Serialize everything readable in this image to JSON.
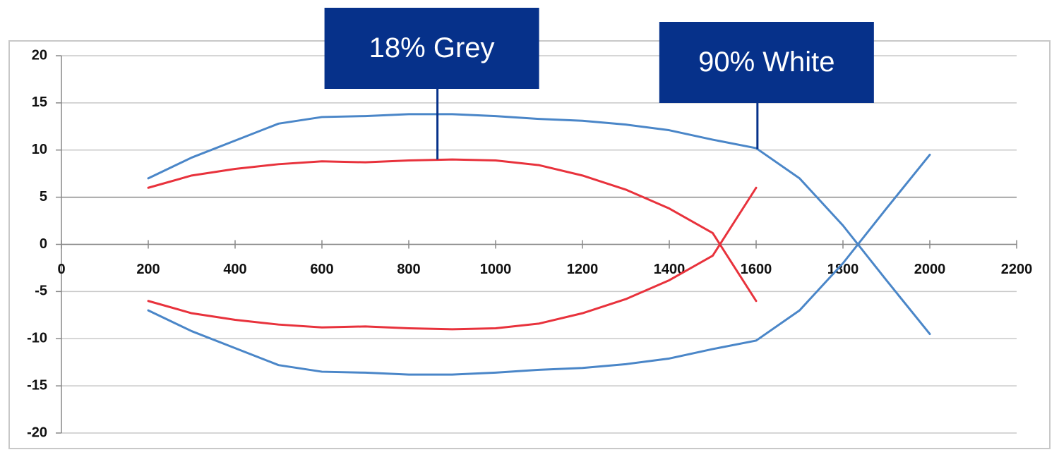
{
  "chart_data": {
    "type": "line",
    "x": [
      200,
      300,
      400,
      500,
      600,
      700,
      800,
      900,
      1000,
      1100,
      1200,
      1300,
      1400,
      1500,
      1600,
      1700,
      1800,
      1900,
      2000
    ],
    "series": [
      {
        "color": "#4a86c8",
        "values": [
          7,
          9.2,
          11,
          12.8,
          13.5,
          13.6,
          13.8,
          13.8,
          13.6,
          13.3,
          13.1,
          12.7,
          12.1,
          11.1,
          10.2,
          7,
          2,
          -3.8,
          -9.5
        ]
      },
      {
        "color": "#4a86c8",
        "values": [
          -7,
          -9.2,
          -11,
          -12.8,
          -13.5,
          -13.6,
          -13.8,
          -13.8,
          -13.6,
          -13.3,
          -13.1,
          -12.7,
          -12.1,
          -11.1,
          -10.2,
          -7,
          -2,
          3.8,
          9.5
        ]
      },
      {
        "color": "#e8323c",
        "values": [
          6,
          7.3,
          8,
          8.5,
          8.8,
          8.7,
          8.9,
          9,
          8.9,
          8.4,
          7.3,
          5.8,
          3.8,
          1.2,
          -6,
          null,
          null,
          null,
          null
        ]
      },
      {
        "color": "#e8323c",
        "values": [
          -6,
          -7.3,
          -8,
          -8.5,
          -8.8,
          -8.7,
          -8.9,
          -9,
          -8.9,
          -8.4,
          -7.3,
          -5.8,
          -3.8,
          -1.2,
          6,
          null,
          null,
          null,
          null
        ]
      }
    ],
    "annotations": [
      {
        "text": "18% Grey",
        "x": 866,
        "y": 9,
        "color": "#06318a"
      },
      {
        "text": "90% White",
        "x": 1603,
        "y": 10.1,
        "color": "#06318a"
      }
    ],
    "xlim": [
      0,
      2200
    ],
    "xticks": [
      0,
      200,
      400,
      600,
      800,
      1000,
      1200,
      1400,
      1600,
      1800,
      2000,
      2200
    ],
    "ylim": [
      -20,
      20
    ],
    "yticks": [
      20,
      15,
      10,
      5,
      0,
      -5,
      -10,
      -15,
      -20
    ],
    "grid": true
  }
}
